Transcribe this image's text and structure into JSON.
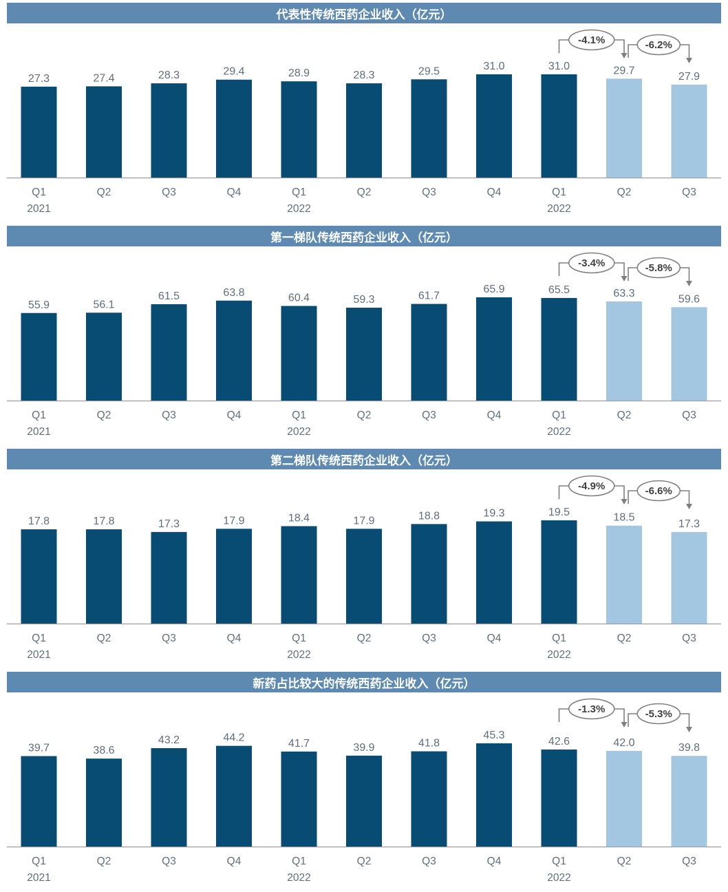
{
  "colors": {
    "header_bg": "#5e8ab2",
    "header_text": "#ffffff",
    "bar_dark": "#084b73",
    "bar_light": "#a3c7e0",
    "value_label": "#5f6e7d",
    "axis_label": "#5f6e7d",
    "axis_line": "#9c9c9c",
    "annotation_line": "#7f7f7f",
    "annotation_fill": "#ffffff",
    "annotation_text": "#3f3f3f"
  },
  "chart_data": [
    {
      "type": "bar",
      "title": "代表性传统西药企业收入（亿元）",
      "categories": [
        {
          "label": "Q1",
          "year": "2021"
        },
        {
          "label": "Q2"
        },
        {
          "label": "Q3"
        },
        {
          "label": "Q4"
        },
        {
          "label": "Q1",
          "year": "2022"
        },
        {
          "label": "Q2"
        },
        {
          "label": "Q3"
        },
        {
          "label": "Q4"
        },
        {
          "label": "Q1",
          "year": "2022"
        },
        {
          "label": "Q2"
        },
        {
          "label": "Q3"
        }
      ],
      "values": [
        27.3,
        27.4,
        28.3,
        29.4,
        28.9,
        28.3,
        29.5,
        31.0,
        31.0,
        29.7,
        27.9
      ],
      "value_labels": [
        "27.3",
        "27.4",
        "28.3",
        "29.4",
        "28.9",
        "28.3",
        "29.5",
        "31.0",
        "31.0",
        "29.7",
        "27.9"
      ],
      "light_indices": [
        9,
        10
      ],
      "annotations": [
        {
          "text": "-4.1%",
          "from_index": 8,
          "to_index": 9
        },
        {
          "text": "-6.2%",
          "from_index": 9,
          "to_index": 10
        }
      ],
      "ylim": [
        0,
        31.0
      ],
      "grid": false,
      "legend": null
    },
    {
      "type": "bar",
      "title": "第一梯队传统西药企业收入（亿元）",
      "categories": [
        {
          "label": "Q1",
          "year": "2021"
        },
        {
          "label": "Q2"
        },
        {
          "label": "Q3"
        },
        {
          "label": "Q4"
        },
        {
          "label": "Q1",
          "year": "2022"
        },
        {
          "label": "Q2"
        },
        {
          "label": "Q3"
        },
        {
          "label": "Q4"
        },
        {
          "label": "Q1",
          "year": "2022"
        },
        {
          "label": "Q2"
        },
        {
          "label": "Q3"
        }
      ],
      "values": [
        55.9,
        56.1,
        61.5,
        63.8,
        60.4,
        59.3,
        61.7,
        65.9,
        65.5,
        63.3,
        59.6
      ],
      "value_labels": [
        "55.9",
        "56.1",
        "61.5",
        "63.8",
        "60.4",
        "59.3",
        "61.7",
        "65.9",
        "65.5",
        "63.3",
        "59.6"
      ],
      "light_indices": [
        9,
        10
      ],
      "annotations": [
        {
          "text": "-3.4%",
          "from_index": 8,
          "to_index": 9
        },
        {
          "text": "-5.8%",
          "from_index": 9,
          "to_index": 10
        }
      ],
      "ylim": [
        0,
        65.9
      ],
      "grid": false,
      "legend": null
    },
    {
      "type": "bar",
      "title": "第二梯队传统西药企业收入（亿元）",
      "categories": [
        {
          "label": "Q1",
          "year": "2021"
        },
        {
          "label": "Q2"
        },
        {
          "label": "Q3"
        },
        {
          "label": "Q4"
        },
        {
          "label": "Q1",
          "year": "2022"
        },
        {
          "label": "Q2"
        },
        {
          "label": "Q3"
        },
        {
          "label": "Q4"
        },
        {
          "label": "Q1",
          "year": "2022"
        },
        {
          "label": "Q2"
        },
        {
          "label": "Q3"
        }
      ],
      "values": [
        17.8,
        17.8,
        17.3,
        17.9,
        18.4,
        17.9,
        18.8,
        19.3,
        19.5,
        18.5,
        17.3
      ],
      "value_labels": [
        "17.8",
        "17.8",
        "17.3",
        "17.9",
        "18.4",
        "17.9",
        "18.8",
        "19.3",
        "19.5",
        "18.5",
        "17.3"
      ],
      "light_indices": [
        9,
        10
      ],
      "annotations": [
        {
          "text": "-4.9%",
          "from_index": 8,
          "to_index": 9
        },
        {
          "text": "-6.6%",
          "from_index": 9,
          "to_index": 10
        }
      ],
      "ylim": [
        0,
        19.5
      ],
      "grid": false,
      "legend": null
    },
    {
      "type": "bar",
      "title": "新药占比较大的传统西药企业收入（亿元）",
      "categories": [
        {
          "label": "Q1",
          "year": "2021"
        },
        {
          "label": "Q2"
        },
        {
          "label": "Q3"
        },
        {
          "label": "Q4"
        },
        {
          "label": "Q1",
          "year": "2022"
        },
        {
          "label": "Q2"
        },
        {
          "label": "Q3"
        },
        {
          "label": "Q4"
        },
        {
          "label": "Q1",
          "year": "2022"
        },
        {
          "label": "Q2"
        },
        {
          "label": "Q3"
        }
      ],
      "values": [
        39.7,
        38.6,
        43.2,
        44.2,
        41.7,
        39.9,
        41.8,
        45.3,
        42.6,
        42.0,
        39.8
      ],
      "value_labels": [
        "39.7",
        "38.6",
        "43.2",
        "44.2",
        "41.7",
        "39.9",
        "41.8",
        "45.3",
        "42.6",
        "42.0",
        "39.8"
      ],
      "light_indices": [
        9,
        10
      ],
      "annotations": [
        {
          "text": "-1.3%",
          "from_index": 8,
          "to_index": 9
        },
        {
          "text": "-5.3%",
          "from_index": 9,
          "to_index": 10
        }
      ],
      "ylim": [
        0,
        45.3
      ],
      "grid": false,
      "legend": null
    }
  ]
}
